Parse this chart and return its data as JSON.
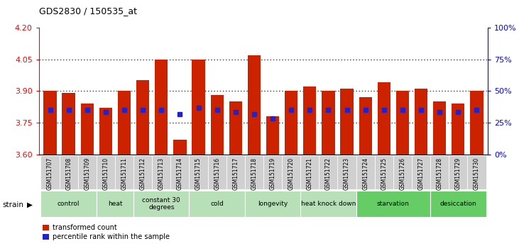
{
  "title": "GDS2830 / 150535_at",
  "samples": [
    "GSM151707",
    "GSM151708",
    "GSM151709",
    "GSM151710",
    "GSM151711",
    "GSM151712",
    "GSM151713",
    "GSM151714",
    "GSM151715",
    "GSM151716",
    "GSM151717",
    "GSM151718",
    "GSM151719",
    "GSM151720",
    "GSM151721",
    "GSM151722",
    "GSM151723",
    "GSM151724",
    "GSM151725",
    "GSM151726",
    "GSM151727",
    "GSM151728",
    "GSM151729",
    "GSM151730"
  ],
  "red_values": [
    3.9,
    3.89,
    3.84,
    3.82,
    3.9,
    3.95,
    4.05,
    3.67,
    4.05,
    3.88,
    3.85,
    4.07,
    3.78,
    3.9,
    3.92,
    3.9,
    3.91,
    3.87,
    3.94,
    3.9,
    3.91,
    3.85,
    3.84,
    3.9
  ],
  "blue_values": [
    3.81,
    3.81,
    3.81,
    3.8,
    3.81,
    3.81,
    3.81,
    3.79,
    3.82,
    3.81,
    3.8,
    3.79,
    3.77,
    3.81,
    3.81,
    3.81,
    3.81,
    3.81,
    3.81,
    3.81,
    3.81,
    3.8,
    3.8,
    3.81
  ],
  "groups": [
    {
      "label": "control",
      "start": 0,
      "end": 2,
      "color": "#b8e0b8"
    },
    {
      "label": "heat",
      "start": 3,
      "end": 4,
      "color": "#b8e0b8"
    },
    {
      "label": "constant 30\ndegrees",
      "start": 5,
      "end": 7,
      "color": "#b8e0b8"
    },
    {
      "label": "cold",
      "start": 8,
      "end": 10,
      "color": "#b8e0b8"
    },
    {
      "label": "longevity",
      "start": 11,
      "end": 13,
      "color": "#b8e0b8"
    },
    {
      "label": "heat knock down",
      "start": 14,
      "end": 16,
      "color": "#b8e0b8"
    },
    {
      "label": "starvation",
      "start": 17,
      "end": 20,
      "color": "#66cc66"
    },
    {
      "label": "desiccation",
      "start": 21,
      "end": 23,
      "color": "#66cc66"
    }
  ],
  "y_min": 3.6,
  "y_max": 4.2,
  "y_ticks": [
    3.6,
    3.75,
    3.9,
    4.05,
    4.2
  ],
  "right_y_ticks": [
    0,
    25,
    50,
    75,
    100
  ],
  "bar_color": "#cc2200",
  "blue_color": "#2222cc",
  "tick_bg_color": "#d0d0d0"
}
